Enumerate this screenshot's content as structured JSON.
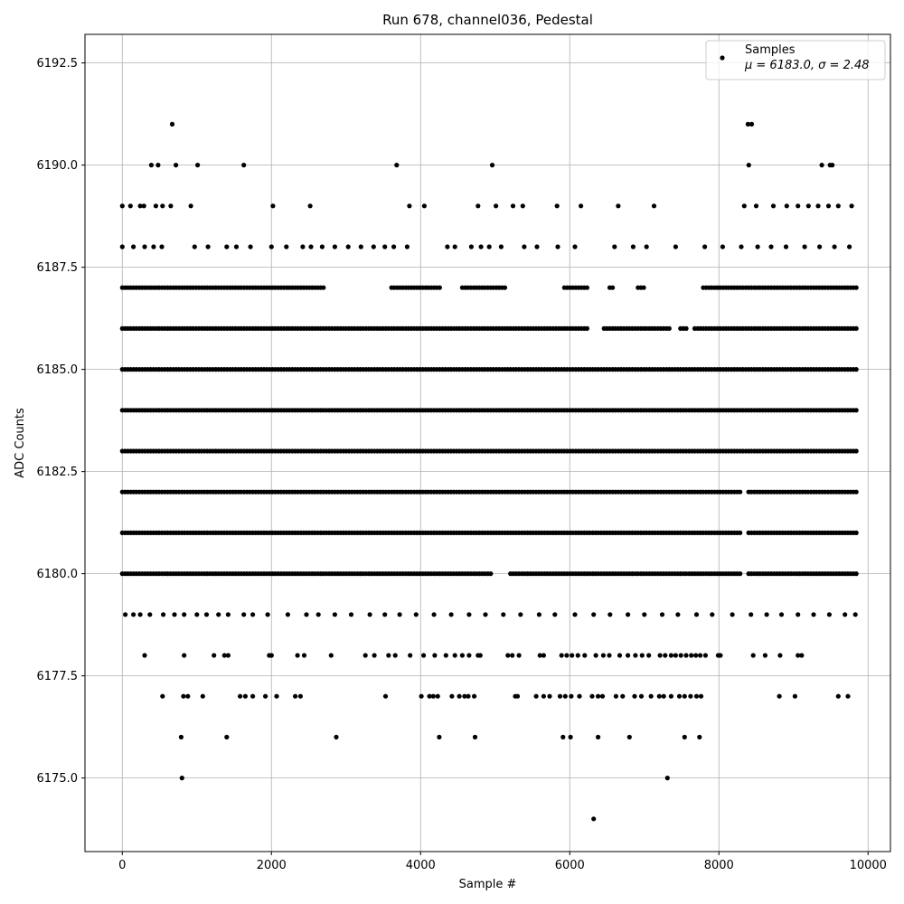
{
  "chart_data": {
    "type": "scatter",
    "title": "Run 678, channel036, Pedestal",
    "xlabel": "Sample #",
    "ylabel": "ADC Counts",
    "xlim": [
      -500,
      10300
    ],
    "ylim": [
      6173.2,
      6193.2
    ],
    "xticks": [
      0,
      2000,
      4000,
      6000,
      8000,
      10000
    ],
    "xtick_labels": [
      "0",
      "2000",
      "4000",
      "6000",
      "8000",
      "10000"
    ],
    "yticks": [
      6175.0,
      6177.5,
      6180.0,
      6182.5,
      6185.0,
      6187.5,
      6190.0,
      6192.5
    ],
    "ytick_labels": [
      "6175.0",
      "6177.5",
      "6180.0",
      "6182.5",
      "6185.0",
      "6187.5",
      "6190.0",
      "6192.5"
    ],
    "grid": true,
    "legend_position": "top-right",
    "marker_color": "#000000",
    "series": [
      {
        "name": "Samples",
        "annotation": "μ = 6183.0, σ = 2.48",
        "x_range": [
          0,
          9850
        ],
        "levels": [
          {
            "y": 6174,
            "x": [
              6320
            ]
          },
          {
            "y": 6175,
            "x": [
              800,
              7310
            ]
          },
          {
            "y": 6176,
            "x": [
              790,
              1400,
              2870,
              4250,
              4730,
              5910,
              6010,
              6380,
              6800,
              7540,
              7740
            ]
          },
          {
            "y": 6177,
            "x": [
              540,
              820,
              880,
              1080,
              1580,
              1650,
              1750,
              1920,
              2070,
              2320,
              2390,
              3530,
              4010,
              4120,
              4170,
              4230,
              4420,
              4520,
              4590,
              4640,
              4720,
              5270,
              5300,
              5550,
              5650,
              5730,
              5870,
              5940,
              6020,
              6130,
              6300,
              6380,
              6440,
              6620,
              6710,
              6870,
              6960,
              7090,
              7200,
              7260,
              7360,
              7470,
              7540,
              7620,
              7700,
              7760,
              8810,
              9020,
              9600,
              9730
            ]
          },
          {
            "y": 6178,
            "x": [
              300,
              830,
              1230,
              1370,
              1420,
              1970,
              2000,
              2350,
              2440,
              2800,
              3260,
              3380,
              3570,
              3660,
              3860,
              4040,
              4190,
              4340,
              4460,
              4560,
              4650,
              4770,
              4800,
              5170,
              5230,
              5320,
              5600,
              5650,
              5890,
              5960,
              6030,
              6110,
              6200,
              6350,
              6450,
              6530,
              6670,
              6780,
              6880,
              6970,
              7060,
              7210,
              7280,
              7360,
              7420,
              7490,
              7560,
              7630,
              7690,
              7750,
              7820,
              7990,
              8020,
              8460,
              8620,
              8820,
              9060,
              9110
            ]
          },
          {
            "y": 6179,
            "x": [
              40,
              150,
              240,
              370,
              550,
              700,
              830,
              1000,
              1130,
              1290,
              1420,
              1630,
              1750,
              1950,
              2220,
              2470,
              2630,
              2850,
              3070,
              3320,
              3520,
              3720,
              3940,
              4180,
              4410,
              4650,
              4870,
              5110,
              5340,
              5590,
              5800,
              6070,
              6320,
              6540,
              6780,
              7000,
              7240,
              7450,
              7700,
              7910,
              8180,
              8430,
              8640,
              8840,
              9060,
              9270,
              9480,
              9690,
              9830
            ]
          },
          {
            "y": 6190,
            "x": [
              390,
              480,
              720,
              1010,
              1630,
              3680,
              4960,
              8400,
              9380,
              9490,
              9520
            ]
          },
          {
            "y": 6191,
            "x": [
              670,
              8390,
              8440
            ]
          },
          {
            "y": 6189,
            "x": [
              0,
              110,
              240,
              290,
              450,
              540,
              650,
              920,
              2020,
              2520,
              3850,
              4050,
              4770,
              5010,
              5240,
              5370,
              5830,
              6150,
              6650,
              7130,
              8340,
              8500,
              8730,
              8910,
              9060,
              9200,
              9330,
              9470,
              9600,
              9780
            ]
          },
          {
            "y": 6188,
            "x": [
              0,
              150,
              300,
              420,
              530,
              970,
              1150,
              1400,
              1530,
              1720,
              2000,
              2200,
              2420,
              2530,
              2680,
              2850,
              3030,
              3200,
              3370,
              3520,
              3640,
              3820,
              4360,
              4460,
              4680,
              4810,
              4920,
              5080,
              5390,
              5560,
              5840,
              6070,
              6600,
              6850,
              7030,
              7420,
              7810,
              8050,
              8300,
              8520,
              8700,
              8900,
              9150,
              9350,
              9550,
              9750
            ]
          }
        ],
        "dense_levels": [
          {
            "y": 6187,
            "gaps": [
              [
                2720,
                3600
              ],
              [
                4280,
                4540
              ],
              [
                5150,
                5900
              ],
              [
                6260,
                6520
              ],
              [
                6600,
                6900
              ],
              [
                7000,
                7780
              ]
            ]
          },
          {
            "y": 6186,
            "gaps": [
              [
                6250,
                6450
              ],
              [
                7350,
                7450
              ],
              [
                7580,
                7660
              ]
            ]
          },
          {
            "y": 6185,
            "gaps": []
          },
          {
            "y": 6184,
            "gaps": []
          },
          {
            "y": 6183,
            "gaps": []
          },
          {
            "y": 6182,
            "gaps": [
              [
                8300,
                8380
              ]
            ]
          },
          {
            "y": 6181,
            "gaps": [
              [
                8300,
                8380
              ]
            ]
          },
          {
            "y": 6180,
            "gaps": [
              [
                4950,
                5200
              ],
              [
                8300,
                8380
              ]
            ]
          }
        ]
      }
    ]
  }
}
